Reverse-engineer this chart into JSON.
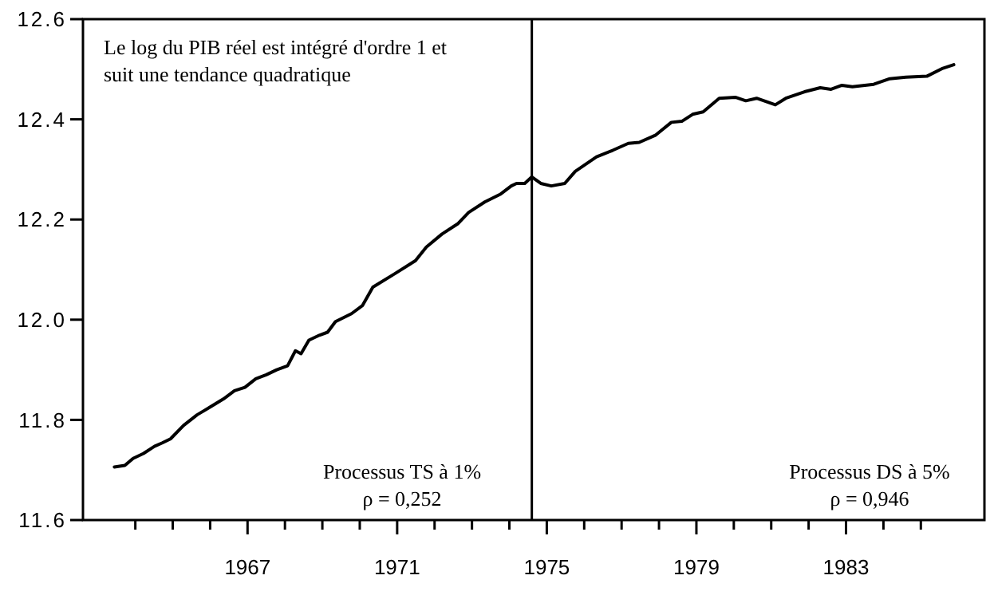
{
  "chart_data": {
    "type": "line",
    "xlim": [
      1962.6,
      1986.7
    ],
    "ylim": [
      11.6,
      12.6
    ],
    "yticks": [
      11.6,
      11.8,
      {
        "value": 12,
        "label": "12.0"
      },
      12.2,
      12.4,
      12.6
    ],
    "xticks": [
      {
        "value": 1964,
        "label": null
      },
      {
        "value": 1965,
        "label": null
      },
      {
        "value": 1966,
        "label": null
      },
      1967,
      {
        "value": 1968,
        "label": null
      },
      {
        "value": 1969,
        "label": null
      },
      {
        "value": 1970,
        "label": null
      },
      1971,
      {
        "value": 1972,
        "label": null
      },
      {
        "value": 1973,
        "label": null
      },
      {
        "value": 1974,
        "label": null
      },
      1975,
      {
        "value": 1976,
        "label": null
      },
      {
        "value": 1977,
        "label": null
      },
      {
        "value": 1978,
        "label": null
      },
      1979,
      {
        "value": 1980,
        "label": null
      },
      {
        "value": 1981,
        "label": null
      },
      {
        "value": 1982,
        "label": null
      },
      1983,
      {
        "value": 1984,
        "label": null
      },
      {
        "value": 1985,
        "label": null
      }
    ],
    "grid": false,
    "marker": "none",
    "line_style": "solid",
    "series": [
      {
        "color": "#000000",
        "x": [
          1963.44,
          1963.72,
          1963.94,
          1964.22,
          1964.51,
          1964.72,
          1964.94,
          1965.29,
          1965.65,
          1966.01,
          1966.36,
          1966.65,
          1966.93,
          1967.22,
          1967.5,
          1967.78,
          1968.07,
          1968.28,
          1968.43,
          1968.64,
          1968.92,
          1969.14,
          1969.35,
          1969.78,
          1970.07,
          1970.35,
          1970.92,
          1971.49,
          1971.78,
          1972.2,
          1972.63,
          1972.91,
          1973.34,
          1973.77,
          1974.05,
          1974.19,
          1974.41,
          1974.6,
          1974.84,
          1975.12,
          1975.48,
          1975.76,
          1976.33,
          1976.76,
          1977.18,
          1977.47,
          1977.9,
          1978.33,
          1978.61,
          1978.9,
          1979.18,
          1979.61,
          1980.04,
          1980.32,
          1980.61,
          1981.11,
          1981.39,
          1981.89,
          1982.31,
          1982.6,
          1982.89,
          1983.17,
          1983.74,
          1984.17,
          1984.6,
          1985.16,
          1985.59,
          1985.88
        ],
        "values": [
          11.706,
          11.709,
          11.723,
          11.733,
          11.747,
          11.754,
          11.762,
          11.789,
          11.81,
          11.826,
          11.842,
          11.858,
          11.865,
          11.882,
          11.89,
          11.9,
          11.908,
          11.938,
          11.932,
          11.959,
          11.969,
          11.975,
          11.996,
          12.012,
          12.028,
          12.065,
          12.091,
          12.118,
          12.145,
          12.171,
          12.192,
          12.214,
          12.235,
          12.251,
          12.267,
          12.272,
          12.272,
          12.285,
          12.272,
          12.267,
          12.272,
          12.296,
          12.325,
          12.338,
          12.352,
          12.354,
          12.368,
          12.394,
          12.396,
          12.41,
          12.415,
          12.442,
          12.444,
          12.437,
          12.442,
          12.429,
          12.442,
          12.455,
          12.463,
          12.46,
          12.468,
          12.465,
          12.47,
          12.481,
          12.484,
          12.486,
          12.502,
          12.509
        ]
      }
    ],
    "ref_lines": [
      {
        "axis": "x",
        "value": 1974.6,
        "color": "#000000"
      }
    ],
    "annotations": [
      "Le log du PIB réel est intégré d'ordre 1 et\nsuit une tendance quadratique",
      "Processus TS à 1%\nρ = 0,252",
      "Processus DS à 5%\nρ = 0,946"
    ]
  }
}
